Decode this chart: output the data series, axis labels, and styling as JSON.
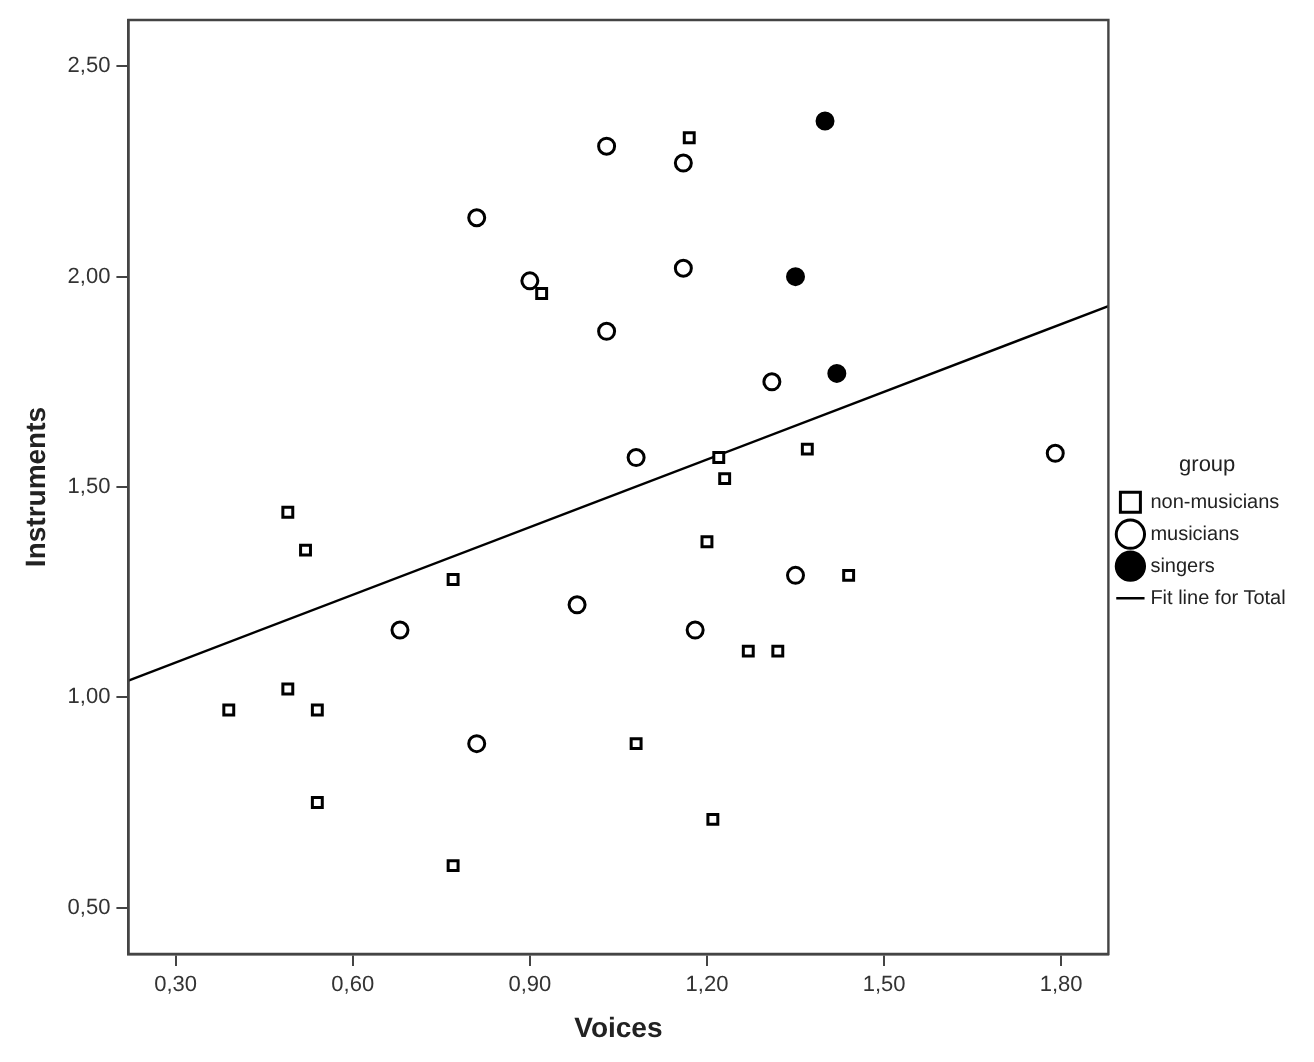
{
  "chart_data": {
    "type": "scatter",
    "xlabel": "Voices",
    "ylabel": "Instruments",
    "legend_title": "group",
    "legend": "right",
    "grid": false,
    "xlim": [
      0.22,
      1.88
    ],
    "ylim": [
      0.39,
      2.61
    ],
    "xticks": [
      {
        "value": 0.3,
        "label": "0,30"
      },
      {
        "value": 0.6,
        "label": "0,60"
      },
      {
        "value": 0.9,
        "label": "0,90"
      },
      {
        "value": 1.2,
        "label": "1,20"
      },
      {
        "value": 1.5,
        "label": "1,50"
      },
      {
        "value": 1.8,
        "label": "1,80"
      }
    ],
    "yticks": [
      {
        "value": 0.5,
        "label": "0,50"
      },
      {
        "value": 1.0,
        "label": "1,00"
      },
      {
        "value": 1.5,
        "label": "1,50"
      },
      {
        "value": 2.0,
        "label": "2,00"
      },
      {
        "value": 2.5,
        "label": "2,50"
      }
    ],
    "series": [
      {
        "name": "non-musicians",
        "color": "#000000",
        "marker": "square",
        "x": [
          1.17,
          0.92,
          1.22,
          1.23,
          1.37,
          0.49,
          0.52,
          0.77,
          1.2,
          1.44,
          1.27,
          1.32,
          0.39,
          0.49,
          0.54,
          1.08,
          0.54,
          1.21,
          0.77
        ],
        "values": [
          2.33,
          1.96,
          1.57,
          1.52,
          1.59,
          1.44,
          1.35,
          1.28,
          1.37,
          1.29,
          1.11,
          1.11,
          0.97,
          1.02,
          0.97,
          0.89,
          0.75,
          0.71,
          0.6
        ]
      },
      {
        "name": "musicians",
        "color": "#000000",
        "marker": "circle",
        "x": [
          1.03,
          1.16,
          0.81,
          0.9,
          1.16,
          1.03,
          1.31,
          1.08,
          1.79,
          0.68,
          0.98,
          1.18,
          1.35,
          0.81
        ],
        "values": [
          2.31,
          2.27,
          2.14,
          1.99,
          2.02,
          1.87,
          1.75,
          1.57,
          1.58,
          1.16,
          1.22,
          1.16,
          1.29,
          0.89
        ]
      },
      {
        "name": "singers",
        "color": "#000000",
        "marker": "circle",
        "x": [
          1.4,
          1.35,
          1.42
        ],
        "values": [
          2.37,
          2.0,
          1.77
        ]
      },
      {
        "name": "Fit line for Total",
        "type": "line",
        "color": "#000000",
        "marker": "none",
        "line_style": "solid",
        "x": [
          0.22,
          1.88
        ],
        "values": [
          1.04,
          1.93
        ]
      }
    ]
  }
}
